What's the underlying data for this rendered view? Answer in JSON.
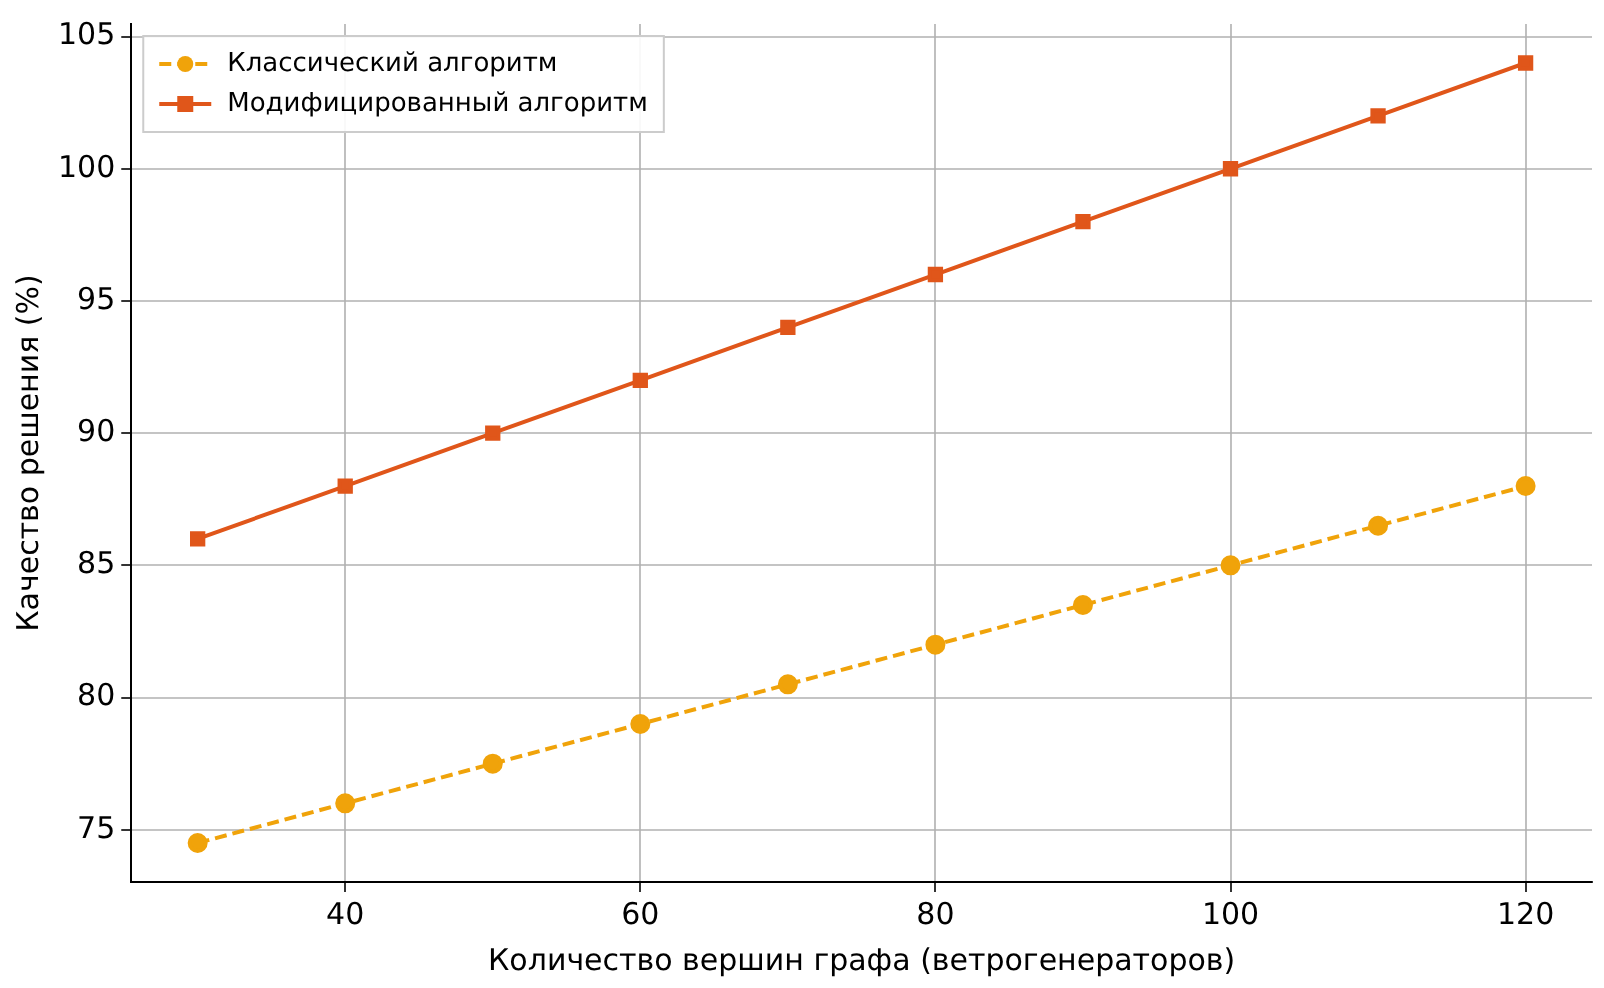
{
  "chart_data": {
    "type": "line",
    "xlabel": "Количество вершин графа (ветрогенераторов)",
    "ylabel": "Качество решения (%)",
    "x": [
      30,
      40,
      50,
      60,
      70,
      80,
      90,
      100,
      110,
      120
    ],
    "series": [
      {
        "name": "Классический алгоритм",
        "color": "#f0a30a",
        "marker": "circle",
        "line_style": "dashed",
        "values": [
          74.5,
          76,
          77.5,
          79,
          80.5,
          82,
          83.5,
          85,
          86.5,
          88
        ]
      },
      {
        "name": "Модифицированный алгоритм",
        "color": "#e0561a",
        "marker": "square",
        "line_style": "solid",
        "values": [
          86,
          88,
          90,
          92,
          94,
          96,
          98,
          100,
          102,
          104
        ]
      }
    ],
    "xlim": [
      25.5,
      124.5
    ],
    "ylim": [
      73.025,
      105.475
    ],
    "xticks": [
      40,
      60,
      80,
      100,
      120
    ],
    "yticks": [
      75,
      80,
      85,
      90,
      95,
      100,
      105
    ],
    "grid": true,
    "legend": "top left"
  }
}
